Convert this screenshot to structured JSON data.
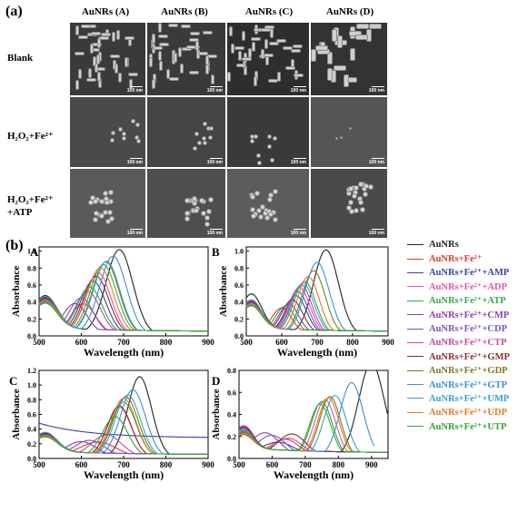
{
  "figure": {
    "panel_a_label": "(a)",
    "panel_b_label": "(b)"
  },
  "sem_grid": {
    "columns": [
      "AuNRs (A)",
      "AuNRs (B)",
      "AuNRs (C)",
      "AuNRs (D)"
    ],
    "rows": [
      {
        "label": "Blank"
      },
      {
        "label_main": "H₂O₂+Fe²⁺"
      },
      {
        "label_main": "H₂O₂+Fe²⁺",
        "label_sub": "+ATP"
      }
    ],
    "scale_bar_text": "100 nm"
  },
  "legend": [
    {
      "name": "AuNRs",
      "color": "#222222"
    },
    {
      "name": "AuNRs+Fe²⁺",
      "color": "#e8372c"
    },
    {
      "name": "AuNRs+Fe²⁺+AMP",
      "color": "#3b3fa0"
    },
    {
      "name": "AuNRs+Fe²⁺+ADP",
      "color": "#e857a8"
    },
    {
      "name": "AuNRs+Fe²⁺+ATP",
      "color": "#3aa84a"
    },
    {
      "name": "AuNRs+Fe²⁺+CMP",
      "color": "#8c3fa6"
    },
    {
      "name": "AuNRs+Fe²⁺+CDP",
      "color": "#7a52c7"
    },
    {
      "name": "AuNRs+Fe²⁺+CTP",
      "color": "#c04aa8"
    },
    {
      "name": "AuNRs+Fe²⁺+GMP",
      "color": "#8b2e2e"
    },
    {
      "name": "AuNRs+Fe²⁺+GDP",
      "color": "#7a7a20"
    },
    {
      "name": "AuNRs+Fe²⁺+GTP",
      "color": "#3a8fd8"
    },
    {
      "name": "AuNRs+Fe²⁺+UMP",
      "color": "#3c9fcf"
    },
    {
      "name": "AuNRs+Fe²⁺+UDP",
      "color": "#e07a2a"
    },
    {
      "name": "AuNRs+Fe²⁺+UTP",
      "color": "#2fa83a"
    }
  ],
  "chart_data": [
    {
      "type": "line",
      "panel": "A",
      "xlabel": "Wavelength (nm)",
      "ylabel": "Absorbance",
      "xlim": [
        500,
        900
      ],
      "ylim": [
        0,
        1.05
      ],
      "xticks": [
        500,
        600,
        700,
        800,
        900
      ],
      "yticks": [
        0.0,
        0.2,
        0.4,
        0.6,
        0.8,
        1.0
      ],
      "series": [
        {
          "name": "AuNRs",
          "trans": 0.38,
          "peak": 690,
          "amp": 1.0,
          "w": 45
        },
        {
          "name": "AuNRs+Fe²⁺",
          "trans": 0.3,
          "peak": 605,
          "amp": 0.35,
          "w": 40
        },
        {
          "name": "AuNRs+Fe²⁺+AMP",
          "trans": 0.36,
          "peak": 628,
          "amp": 0.62,
          "w": 42
        },
        {
          "name": "AuNRs+Fe²⁺+ADP",
          "trans": 0.33,
          "peak": 640,
          "amp": 0.72,
          "w": 42
        },
        {
          "name": "AuNRs+Fe²⁺+ATP",
          "trans": 0.3,
          "peak": 652,
          "amp": 0.82,
          "w": 44
        },
        {
          "name": "AuNRs+Fe²⁺+CMP",
          "trans": 0.34,
          "peak": 585,
          "amp": 0.35,
          "w": 40
        },
        {
          "name": "AuNRs+Fe²⁺+CDP",
          "trans": 0.32,
          "peak": 600,
          "amp": 0.42,
          "w": 40
        },
        {
          "name": "AuNRs+Fe²⁺+CTP",
          "trans": 0.31,
          "peak": 615,
          "amp": 0.5,
          "w": 42
        },
        {
          "name": "AuNRs+Fe²⁺+GMP",
          "trans": 0.35,
          "peak": 635,
          "amp": 0.68,
          "w": 42
        },
        {
          "name": "AuNRs+Fe²⁺+GDP",
          "trans": 0.33,
          "peak": 658,
          "amp": 0.85,
          "w": 44
        },
        {
          "name": "AuNRs+Fe²⁺+GTP",
          "trans": 0.3,
          "peak": 675,
          "amp": 0.92,
          "w": 45
        },
        {
          "name": "AuNRs+Fe²⁺+UMP",
          "trans": 0.37,
          "peak": 660,
          "amp": 0.86,
          "w": 44
        },
        {
          "name": "AuNRs+Fe²⁺+UDP",
          "trans": 0.32,
          "peak": 645,
          "amp": 0.78,
          "w": 44
        },
        {
          "name": "AuNRs+Fe²⁺+UTP",
          "trans": 0.29,
          "peak": 620,
          "amp": 0.55,
          "w": 42
        }
      ]
    },
    {
      "type": "line",
      "panel": "B",
      "xlabel": "Wavelength (nm)",
      "ylabel": "Absorbance",
      "xlim": [
        500,
        900
      ],
      "ylim": [
        0,
        1.05
      ],
      "xticks": [
        500,
        600,
        700,
        800,
        900
      ],
      "yticks": [
        0.0,
        0.2,
        0.4,
        0.6,
        0.8,
        1.0
      ],
      "series": [
        {
          "name": "AuNRs",
          "trans": 0.4,
          "peak": 725,
          "amp": 1.0,
          "w": 50
        },
        {
          "name": "AuNRs+Fe²⁺",
          "trans": 0.26,
          "peak": 600,
          "amp": 0.3,
          "w": 40
        },
        {
          "name": "AuNRs+Fe²⁺+AMP",
          "trans": 0.3,
          "peak": 640,
          "amp": 0.45,
          "w": 42
        },
        {
          "name": "AuNRs+Fe²⁺+ADP",
          "trans": 0.28,
          "peak": 650,
          "amp": 0.55,
          "w": 42
        },
        {
          "name": "AuNRs+Fe²⁺+ATP",
          "trans": 0.27,
          "peak": 665,
          "amp": 0.62,
          "w": 44
        },
        {
          "name": "AuNRs+Fe²⁺+CMP",
          "trans": 0.32,
          "peak": 620,
          "amp": 0.35,
          "w": 40
        },
        {
          "name": "AuNRs+Fe²⁺+CDP",
          "trans": 0.3,
          "peak": 645,
          "amp": 0.5,
          "w": 42
        },
        {
          "name": "AuNRs+Fe²⁺+CTP",
          "trans": 0.29,
          "peak": 655,
          "amp": 0.58,
          "w": 42
        },
        {
          "name": "AuNRs+Fe²⁺+GMP",
          "trans": 0.31,
          "peak": 630,
          "amp": 0.4,
          "w": 42
        },
        {
          "name": "AuNRs+Fe²⁺+GDP",
          "trans": 0.28,
          "peak": 690,
          "amp": 0.75,
          "w": 46
        },
        {
          "name": "AuNRs+Fe²⁺+GTP",
          "trans": 0.27,
          "peak": 700,
          "amp": 0.85,
          "w": 48
        },
        {
          "name": "AuNRs+Fe²⁺+UMP",
          "trans": 0.33,
          "peak": 660,
          "amp": 0.6,
          "w": 44
        },
        {
          "name": "AuNRs+Fe²⁺+UDP",
          "trans": 0.28,
          "peak": 675,
          "amp": 0.68,
          "w": 44
        },
        {
          "name": "AuNRs+Fe²⁺+UTP",
          "trans": 0.26,
          "peak": 610,
          "amp": 0.32,
          "w": 40
        }
      ]
    },
    {
      "type": "line",
      "panel": "C",
      "xlabel": "Wavelength (nm)",
      "ylabel": "Absorbance",
      "xlim": [
        500,
        900
      ],
      "ylim": [
        0,
        1.2
      ],
      "xticks": [
        500,
        600,
        700,
        800,
        900
      ],
      "yticks": [
        0.0,
        0.2,
        0.4,
        0.6,
        0.8,
        1.0,
        1.2
      ],
      "series": [
        {
          "name": "AuNRs",
          "trans": 0.25,
          "peak": 738,
          "amp": 1.1,
          "w": 40
        },
        {
          "name": "AuNRs+Fe²⁺",
          "trans": 0.2,
          "peak": 640,
          "amp": 0.2,
          "w": 60
        },
        {
          "name": "AuNRs+Fe²⁺+AMP",
          "trans": 0.48,
          "peak": 560,
          "amp": 0.48,
          "w": 160,
          "flat": 0.28
        },
        {
          "name": "AuNRs+Fe²⁺+ADP",
          "trans": 0.22,
          "peak": 690,
          "amp": 0.68,
          "w": 40
        },
        {
          "name": "AuNRs+Fe²⁺+ATP",
          "trans": 0.2,
          "peak": 700,
          "amp": 0.75,
          "w": 42
        },
        {
          "name": "AuNRs+Fe²⁺+CMP",
          "trans": 0.24,
          "peak": 600,
          "amp": 0.2,
          "w": 50
        },
        {
          "name": "AuNRs+Fe²⁺+CDP",
          "trans": 0.22,
          "peak": 620,
          "amp": 0.22,
          "w": 50
        },
        {
          "name": "AuNRs+Fe²⁺+CTP",
          "trans": 0.21,
          "peak": 660,
          "amp": 0.3,
          "w": 50
        },
        {
          "name": "AuNRs+Fe²⁺+GMP",
          "trans": 0.23,
          "peak": 690,
          "amp": 0.7,
          "w": 40
        },
        {
          "name": "AuNRs+Fe²⁺+GDP",
          "trans": 0.21,
          "peak": 705,
          "amp": 0.82,
          "w": 42
        },
        {
          "name": "AuNRs+Fe²⁺+GTP",
          "trans": 0.2,
          "peak": 722,
          "amp": 0.92,
          "w": 42
        },
        {
          "name": "AuNRs+Fe²⁺+UMP",
          "trans": 0.26,
          "peak": 710,
          "amp": 0.85,
          "w": 42
        },
        {
          "name": "AuNRs+Fe²⁺+UDP",
          "trans": 0.22,
          "peak": 700,
          "amp": 0.8,
          "w": 42
        },
        {
          "name": "AuNRs+Fe²⁺+UTP",
          "trans": 0.2,
          "peak": 680,
          "amp": 0.55,
          "w": 42
        }
      ]
    },
    {
      "type": "line",
      "panel": "D",
      "xlabel": "Wavelength (nm)",
      "ylabel": "Absorbance",
      "xlim": [
        500,
        950
      ],
      "ylim": [
        0,
        0.8
      ],
      "xticks": [
        500,
        600,
        700,
        800,
        900
      ],
      "yticks": [
        0.0,
        0.2,
        0.4,
        0.6,
        0.8
      ],
      "series": [
        {
          "name": "AuNRs",
          "trans": 0.15,
          "peak": 900,
          "amp": 0.86,
          "w": 55
        },
        {
          "name": "AuNRs+Fe²⁺",
          "trans": 0.12,
          "peak": 640,
          "amp": 0.15,
          "w": 60
        },
        {
          "name": "AuNRs+Fe²⁺+AMP",
          "trans": 0.16,
          "peak": 620,
          "amp": 0.12,
          "w": 70
        },
        {
          "name": "AuNRs+Fe²⁺+ADP",
          "trans": 0.18,
          "peak": 760,
          "amp": 0.52,
          "w": 45
        },
        {
          "name": "AuNRs+Fe²⁺+ATP",
          "trans": 0.15,
          "peak": 745,
          "amp": 0.48,
          "w": 45
        },
        {
          "name": "AuNRs+Fe²⁺+CMP",
          "trans": 0.2,
          "peak": 580,
          "amp": 0.2,
          "w": 60
        },
        {
          "name": "AuNRs+Fe²⁺+CDP",
          "trans": 0.18,
          "peak": 600,
          "amp": 0.18,
          "w": 60
        },
        {
          "name": "AuNRs+Fe²⁺+CTP",
          "trans": 0.17,
          "peak": 650,
          "amp": 0.16,
          "w": 60
        },
        {
          "name": "AuNRs+Fe²⁺+GMP",
          "trans": 0.19,
          "peak": 660,
          "amp": 0.2,
          "w": 60
        },
        {
          "name": "AuNRs+Fe²⁺+GDP",
          "trans": 0.14,
          "peak": 775,
          "amp": 0.55,
          "w": 45
        },
        {
          "name": "AuNRs+Fe²⁺+GTP",
          "trans": 0.13,
          "peak": 840,
          "amp": 0.68,
          "w": 50,
          "end": 910
        },
        {
          "name": "AuNRs+Fe²⁺+UMP",
          "trans": 0.16,
          "peak": 790,
          "amp": 0.56,
          "w": 48
        },
        {
          "name": "AuNRs+Fe²⁺+UDP",
          "trans": 0.13,
          "peak": 770,
          "amp": 0.54,
          "w": 45
        },
        {
          "name": "AuNRs+Fe²⁺+UTP",
          "trans": 0.15,
          "peak": 750,
          "amp": 0.5,
          "w": 45
        }
      ]
    }
  ]
}
